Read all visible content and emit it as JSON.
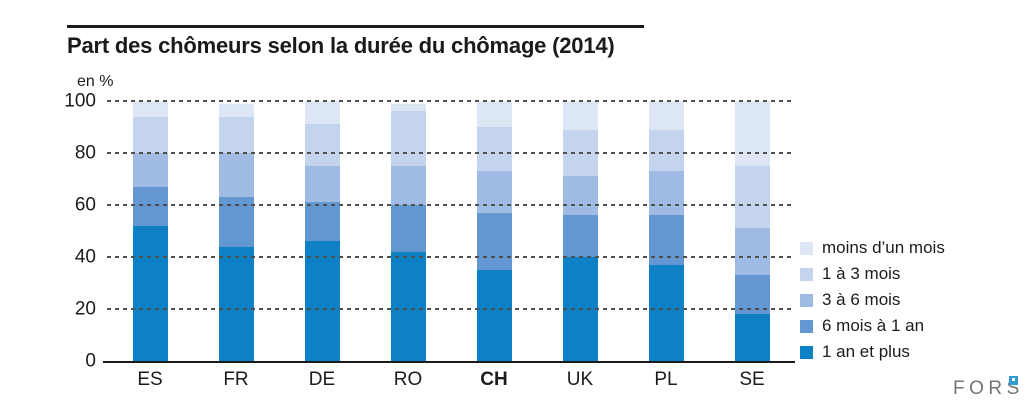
{
  "header": {
    "title": "Part des chômeurs selon la durée du chômage (2014)"
  },
  "chart_data": {
    "type": "bar",
    "stacked": true,
    "title": "Part des chômeurs selon la durée du chômage (2014)",
    "ylabel": "en %",
    "unit": "%",
    "ylim": [
      0,
      100
    ],
    "yticks": [
      0,
      20,
      40,
      60,
      80,
      100
    ],
    "grid": "dashed horizontal gridlines at 20/40/60/80/100, solid baseline at 0",
    "legend_position": "right, bottom-aligned",
    "categories": [
      "ES",
      "FR",
      "DE",
      "RO",
      "CH",
      "UK",
      "PL",
      "SE"
    ],
    "emphasized_category": "CH",
    "series": [
      {
        "name": "moins d’un mois",
        "color": "#dce6f4",
        "values": [
          6,
          5,
          9,
          3,
          10,
          11,
          11,
          25
        ]
      },
      {
        "name": "1 à 3 mois",
        "color": "#c5d4ee",
        "values": [
          14,
          14,
          16,
          21,
          17,
          18,
          16,
          24
        ]
      },
      {
        "name": "3 à 6 mois",
        "color": "#9fbbe3",
        "values": [
          13,
          17,
          14,
          15,
          16,
          15,
          17,
          18
        ]
      },
      {
        "name": "6 mois à 1 an",
        "color": "#6397d2",
        "values": [
          15,
          19,
          15,
          18,
          22,
          16,
          19,
          15
        ]
      },
      {
        "name": "1 an et plus",
        "color": "#0e81c6",
        "values": [
          52,
          44,
          46,
          42,
          35,
          40,
          37,
          18
        ]
      }
    ],
    "stack_order_note": "legend top-to-bottom equals bar top-to-bottom: moins d’un mois on top, 1 an et plus at bottom"
  },
  "footer": {
    "logo_text": "FORS"
  }
}
